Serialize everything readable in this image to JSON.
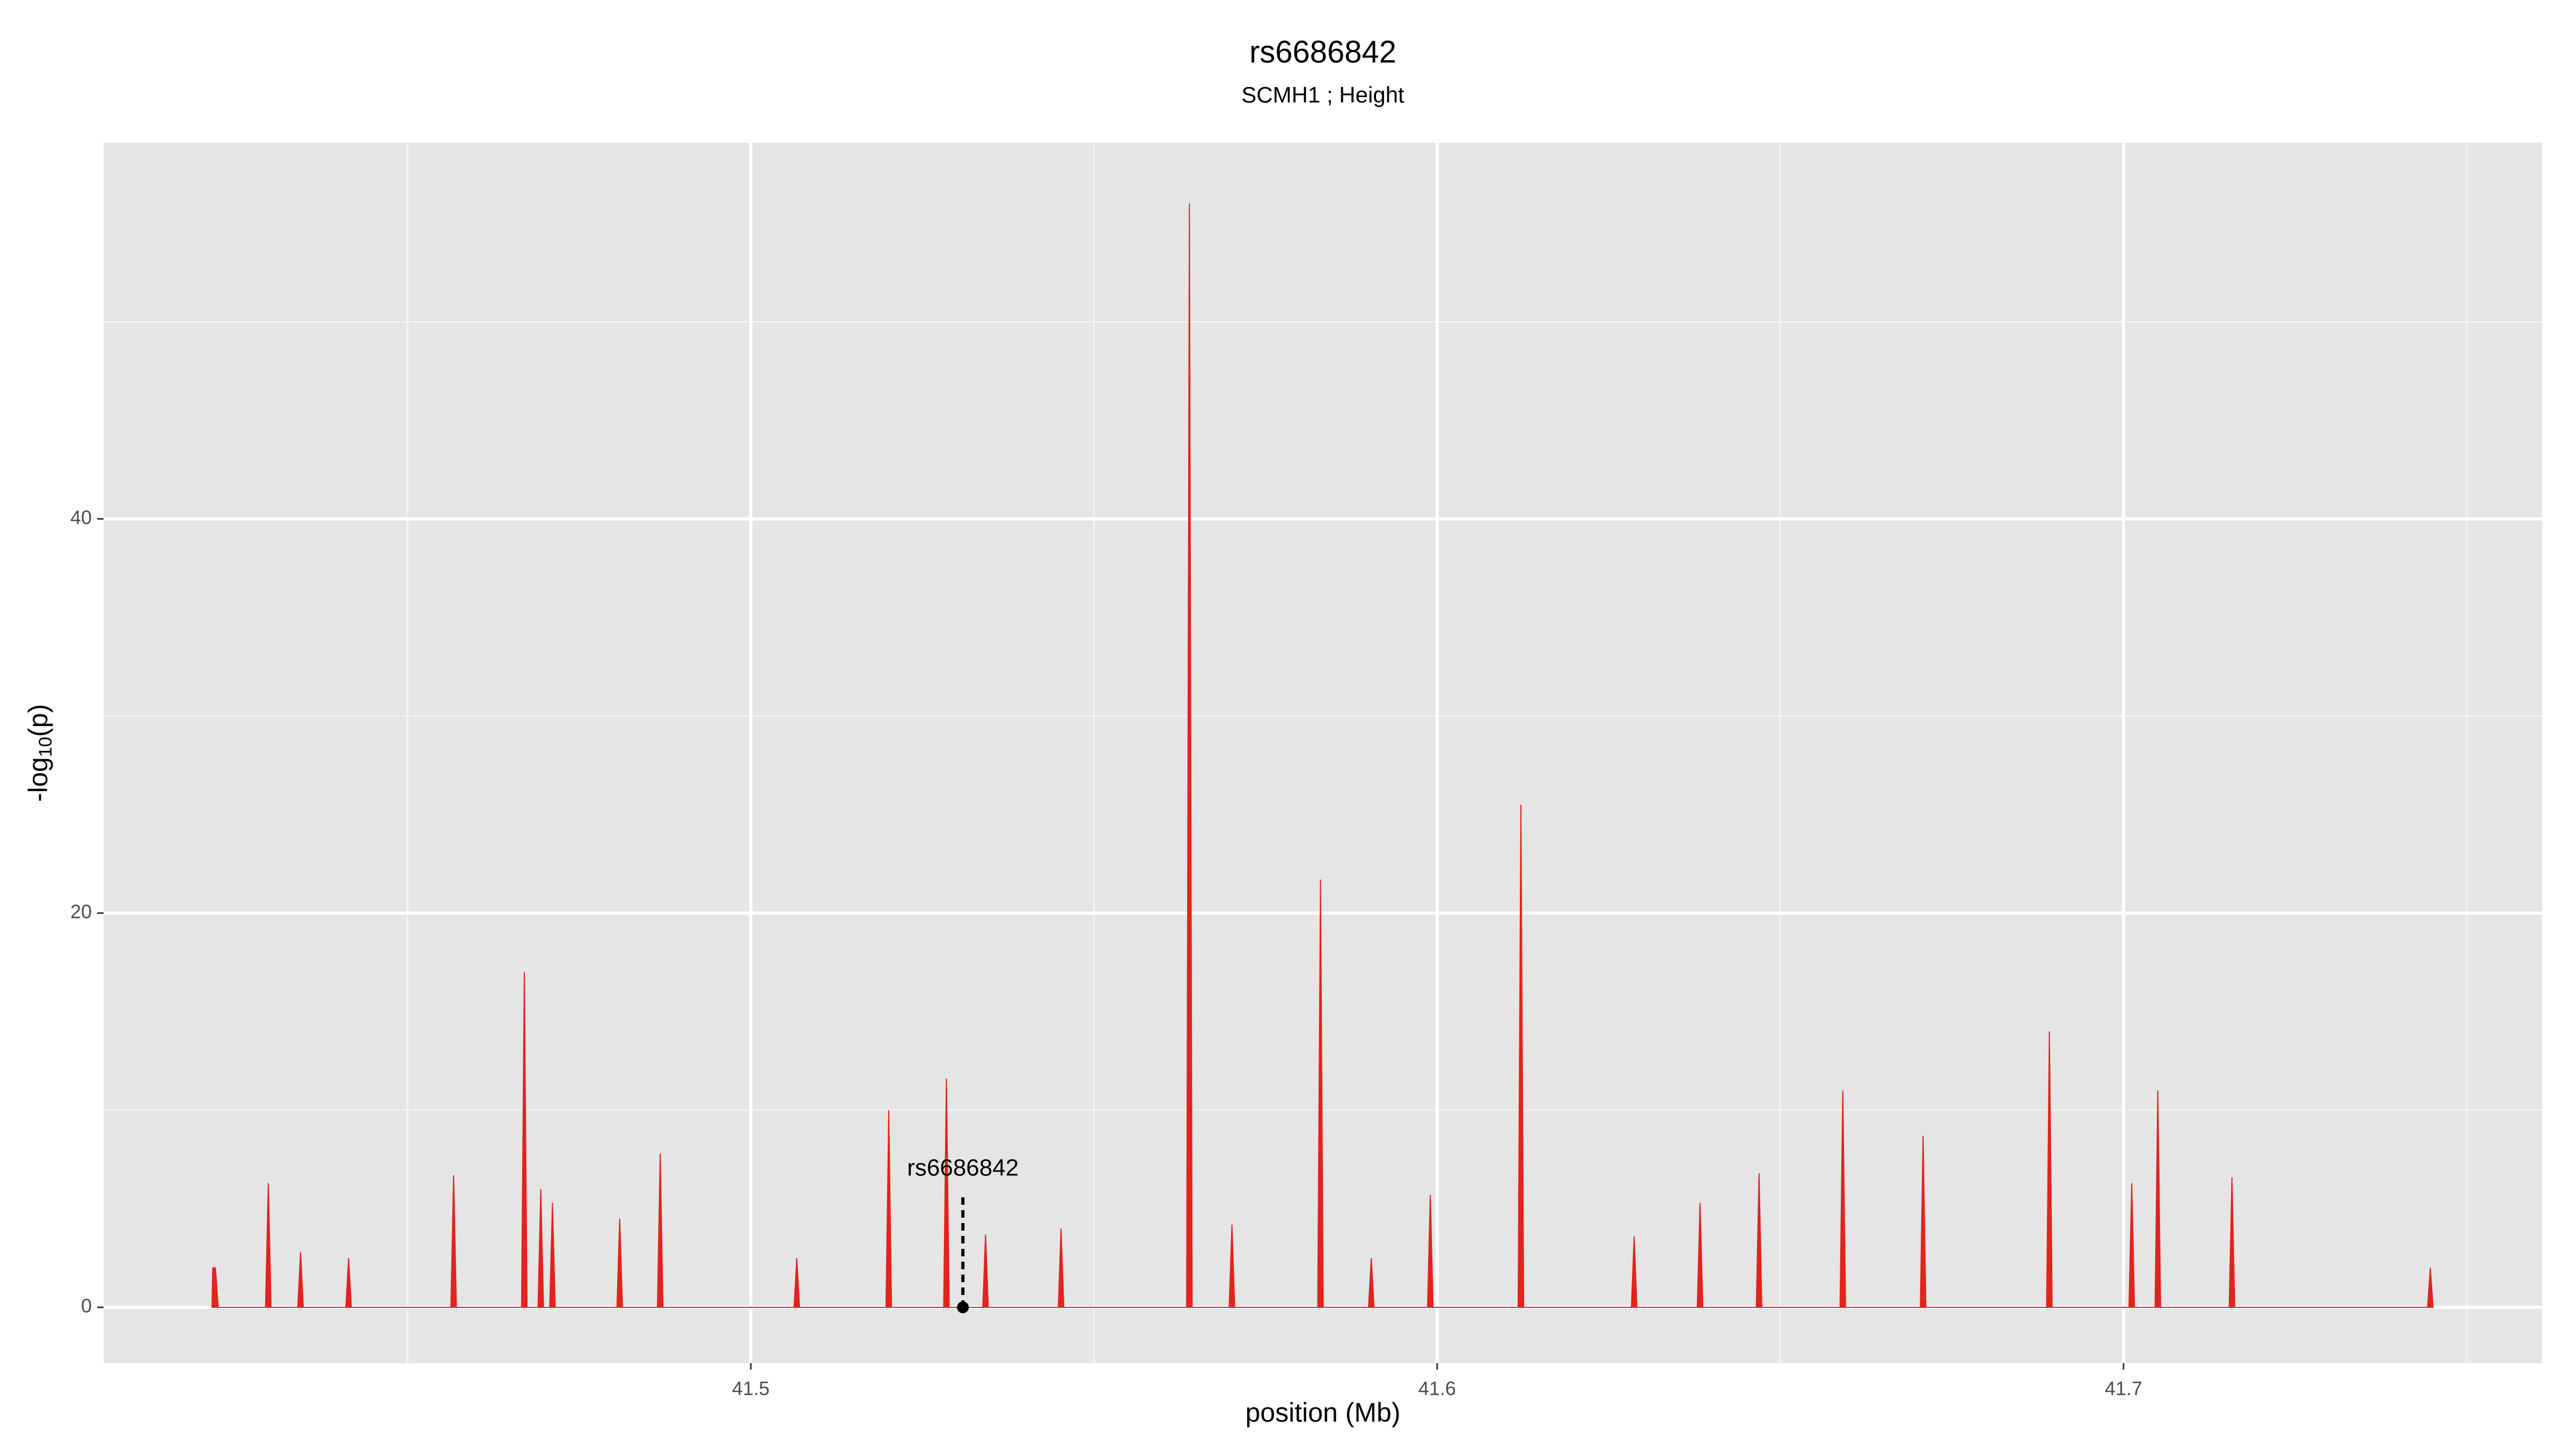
{
  "chart_data": {
    "type": "area",
    "title": "rs6686842",
    "subtitle": "SCMH1 ; Height",
    "xlabel": "position (Mb)",
    "ylabel": [
      "-log",
      "10",
      "(p)"
    ],
    "color": "#e3231c",
    "x": [
      41.4215,
      41.4216,
      41.422,
      41.4224,
      41.4293,
      41.4297,
      41.4301,
      41.434,
      41.4344,
      41.4348,
      41.441,
      41.4414,
      41.4418,
      41.4563,
      41.4567,
      41.4571,
      41.4666,
      41.467,
      41.4674,
      41.469,
      41.4694,
      41.4698,
      41.4707,
      41.4711,
      41.4715,
      41.4805,
      41.4809,
      41.4813,
      41.4864,
      41.4868,
      41.4872,
      41.5063,
      41.5067,
      41.5071,
      41.5197,
      41.5201,
      41.5205,
      41.5281,
      41.5285,
      41.5289,
      41.5338,
      41.5342,
      41.5346,
      41.5448,
      41.5452,
      41.5456,
      41.5635,
      41.5639,
      41.5643,
      41.5697,
      41.5701,
      41.5705,
      41.5826,
      41.583,
      41.5834,
      41.59,
      41.5904,
      41.5908,
      41.5986,
      41.599,
      41.5994,
      41.6118,
      41.6122,
      41.6126,
      41.6283,
      41.6287,
      41.6291,
      41.6379,
      41.6383,
      41.6387,
      41.6465,
      41.6469,
      41.6473,
      41.6587,
      41.6591,
      41.6595,
      41.6704,
      41.6708,
      41.6712,
      41.6888,
      41.6892,
      41.6896,
      41.7008,
      41.7012,
      41.7016,
      41.7046,
      41.705,
      41.7054,
      41.7154,
      41.7158,
      41.7162,
      41.7443,
      41.7447,
      41.7451
    ],
    "values": [
      0,
      2,
      2,
      0,
      0,
      6.3,
      0,
      0,
      2.8,
      0,
      0,
      2.5,
      0,
      0,
      6.7,
      0,
      0,
      17,
      0,
      0,
      6,
      0,
      0,
      5.3,
      0,
      0,
      4.5,
      0,
      0,
      7.8,
      0,
      0,
      2.5,
      0,
      0,
      10,
      0,
      0,
      11.6,
      0,
      0,
      3.7,
      0,
      0,
      4,
      0,
      0,
      56,
      0,
      0,
      4.2,
      0,
      0,
      21.7,
      0,
      0,
      2.5,
      0,
      0,
      5.7,
      0,
      0,
      25.5,
      0,
      0,
      3.6,
      0,
      0,
      5.3,
      0,
      0,
      6.8,
      0,
      0,
      11,
      0,
      0,
      8.7,
      0,
      0,
      14,
      0,
      0,
      6.3,
      0,
      0,
      11,
      0,
      0,
      6.6,
      0,
      0,
      2,
      0
    ],
    "annotation": {
      "text": "rs6686842",
      "x": 41.5309,
      "y": 0
    },
    "xlim": [
      41.4057,
      41.761
    ],
    "ylim": [
      -2.83,
      59.08
    ],
    "xticks": [
      41.5,
      41.6,
      41.7
    ],
    "yticks": [
      0,
      20,
      40
    ],
    "xminor": [
      41.45,
      41.55,
      41.65,
      41.75
    ],
    "yminor": [
      10,
      30,
      50
    ],
    "grid": true
  }
}
